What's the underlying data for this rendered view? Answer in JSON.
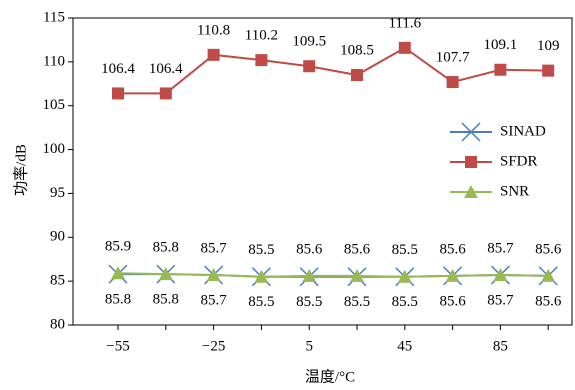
{
  "chart_data": {
    "type": "line",
    "categories": [
      "−55",
      null,
      "−25",
      null,
      "5",
      null,
      "45",
      null,
      "85",
      null
    ],
    "series": [
      {
        "name": "SINAD",
        "color": "#4a7ebb",
        "marker": "x",
        "values": [
          85.8,
          85.8,
          85.7,
          85.5,
          85.5,
          85.5,
          85.5,
          85.6,
          85.7,
          85.6
        ]
      },
      {
        "name": "SFDR",
        "color": "#be4b48",
        "marker": "square",
        "values": [
          106.4,
          106.4,
          110.8,
          110.2,
          109.5,
          108.5,
          111.6,
          107.7,
          109.1,
          109
        ]
      },
      {
        "name": "SNR",
        "color": "#98b954",
        "marker": "triangle",
        "values": [
          85.9,
          85.8,
          85.7,
          85.5,
          85.6,
          85.6,
          85.5,
          85.6,
          85.7,
          85.6
        ]
      }
    ],
    "ylim": [
      80,
      115
    ],
    "yticks": [
      80,
      85,
      90,
      95,
      100,
      105,
      110,
      115
    ],
    "y_label": "功率/dB",
    "x_label": "温度/°C"
  }
}
